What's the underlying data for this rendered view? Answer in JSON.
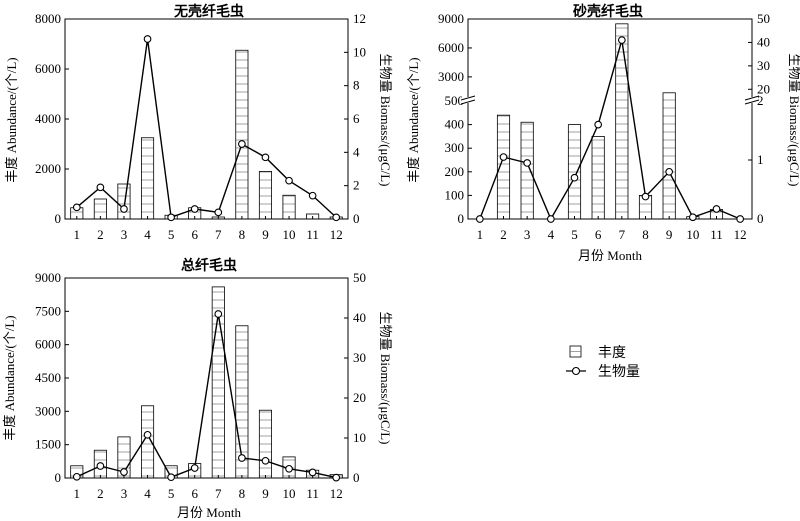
{
  "chart_data": [
    {
      "type": "bar",
      "title": "无壳纤毛虫",
      "xlabel": "",
      "ylabel_left": "丰度 Abundance/(个/L)",
      "ylabel_right": "生物量 Biomass/(μgC/L)",
      "categories": [
        "1",
        "2",
        "3",
        "4",
        "5",
        "6",
        "7",
        "8",
        "9",
        "10",
        "11",
        "12"
      ],
      "left_ticks": [
        "0",
        "2000",
        "4000",
        "6000",
        "8000"
      ],
      "right_ticks": [
        "0",
        "2",
        "4",
        "6",
        "8",
        "10",
        "12"
      ],
      "ylim_left": [
        0,
        8000
      ],
      "ylim_right": [
        0,
        12
      ],
      "series": [
        {
          "name": "丰度",
          "kind": "bar",
          "axis": "left",
          "values": [
            450,
            800,
            1400,
            3250,
            150,
            450,
            80,
            6750,
            1900,
            950,
            200,
            80
          ]
        },
        {
          "name": "生物量",
          "kind": "line",
          "axis": "right",
          "values": [
            0.7,
            1.9,
            0.6,
            10.8,
            0.1,
            0.6,
            0.4,
            4.5,
            3.7,
            2.3,
            1.4,
            0.1
          ]
        }
      ]
    },
    {
      "type": "bar",
      "title": "砂壳纤毛虫",
      "xlabel": "月份 Month",
      "ylabel_left": "丰度 Abundance/(个/L)",
      "ylabel_right": "生物量 Biomass/(μgC/L)",
      "categories": [
        "1",
        "2",
        "3",
        "4",
        "5",
        "6",
        "7",
        "8",
        "9",
        "10",
        "11",
        "12"
      ],
      "left_ticks_lower": [
        "0",
        "100",
        "200",
        "300",
        "400",
        "500"
      ],
      "left_ticks_upper": [
        "3000",
        "6000",
        "9000"
      ],
      "right_ticks_lower": [
        "0",
        "1",
        "2"
      ],
      "right_ticks_upper": [
        "20",
        "30",
        "40",
        "50"
      ],
      "ylim_left": [
        0,
        9000
      ],
      "ylim_right": [
        0,
        50
      ],
      "axis_break": {
        "left": 500,
        "right": 2
      },
      "series": [
        {
          "name": "丰度",
          "kind": "bar",
          "axis": "left",
          "values": [
            0,
            440,
            410,
            0,
            400,
            350,
            8500,
            100,
            1350,
            10,
            40,
            0
          ]
        },
        {
          "name": "生物量",
          "kind": "line",
          "axis": "right",
          "values": [
            0,
            1.05,
            0.95,
            0,
            0.7,
            1.6,
            41,
            0.38,
            0.8,
            0.03,
            0.17,
            0
          ]
        }
      ]
    },
    {
      "type": "bar",
      "title": "总纤毛虫",
      "xlabel": "月份 Month",
      "ylabel_left": "丰度 Abundance/(个/L)",
      "ylabel_right": "生物量 Biomass/(μgC/L)",
      "categories": [
        "1",
        "2",
        "3",
        "4",
        "5",
        "6",
        "7",
        "8",
        "9",
        "10",
        "11",
        "12"
      ],
      "left_ticks": [
        "0",
        "1500",
        "3000",
        "4500",
        "6000",
        "7500",
        "9000"
      ],
      "right_ticks": [
        "0",
        "10",
        "20",
        "30",
        "40",
        "50"
      ],
      "ylim_left": [
        0,
        9000
      ],
      "ylim_right": [
        0,
        50
      ],
      "series": [
        {
          "name": "丰度",
          "kind": "bar",
          "axis": "left",
          "values": [
            550,
            1250,
            1850,
            3250,
            550,
            650,
            8600,
            6850,
            3050,
            950,
            350,
            150
          ]
        },
        {
          "name": "生物量",
          "kind": "line",
          "axis": "right",
          "values": [
            0.3,
            3,
            1.5,
            10.8,
            0.2,
            2.5,
            41,
            5,
            4.3,
            2.3,
            1.4,
            0.1
          ]
        }
      ]
    }
  ],
  "legend": {
    "items": [
      {
        "label": "丰度",
        "marker": "bar"
      },
      {
        "label": "生物量",
        "marker": "line-circle"
      }
    ]
  }
}
